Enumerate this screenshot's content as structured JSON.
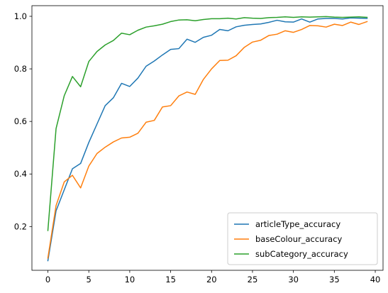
{
  "chart_data": {
    "type": "line",
    "title": "",
    "xlabel": "",
    "ylabel": "",
    "xlim": [
      -1.95,
      40.95
    ],
    "ylim": [
      0.0335,
      1.0405
    ],
    "xticks": [
      0,
      5,
      10,
      15,
      20,
      25,
      30,
      35,
      40
    ],
    "xtick_labels": [
      "0",
      "5",
      "10",
      "15",
      "20",
      "25",
      "30",
      "35",
      "40"
    ],
    "yticks": [
      0.2,
      0.4,
      0.6,
      0.8,
      1.0
    ],
    "ytick_labels": [
      "0.2",
      "0.4",
      "0.6",
      "0.8",
      "1.0"
    ],
    "grid": false,
    "legend_position": "bottom-right",
    "x": [
      0,
      1,
      2,
      3,
      4,
      5,
      6,
      7,
      8,
      9,
      10,
      11,
      12,
      13,
      14,
      15,
      16,
      17,
      18,
      19,
      20,
      21,
      22,
      23,
      24,
      25,
      26,
      27,
      28,
      29,
      30,
      31,
      32,
      33,
      34,
      35,
      36,
      37,
      38,
      39
    ],
    "series": [
      {
        "name": "articleType_accuracy",
        "color": "#1f77b4",
        "values": [
          0.07,
          0.26,
          0.34,
          0.42,
          0.44,
          0.52,
          0.59,
          0.66,
          0.69,
          0.745,
          0.733,
          0.765,
          0.81,
          0.83,
          0.853,
          0.874,
          0.877,
          0.913,
          0.901,
          0.92,
          0.928,
          0.95,
          0.945,
          0.96,
          0.966,
          0.969,
          0.971,
          0.977,
          0.985,
          0.979,
          0.978,
          0.99,
          0.978,
          0.99,
          0.992,
          0.992,
          0.99,
          0.994,
          0.993,
          0.992
        ]
      },
      {
        "name": "baseColour_accuracy",
        "color": "#ff7f0e",
        "values": [
          0.08,
          0.28,
          0.37,
          0.395,
          0.347,
          0.43,
          0.478,
          0.502,
          0.522,
          0.537,
          0.54,
          0.555,
          0.597,
          0.604,
          0.655,
          0.66,
          0.697,
          0.712,
          0.703,
          0.76,
          0.8,
          0.832,
          0.833,
          0.85,
          0.882,
          0.902,
          0.909,
          0.927,
          0.932,
          0.945,
          0.939,
          0.95,
          0.965,
          0.964,
          0.959,
          0.97,
          0.965,
          0.978,
          0.969,
          0.98
        ]
      },
      {
        "name": "subCategory_accuracy",
        "color": "#2ca02c",
        "values": [
          0.185,
          0.573,
          0.698,
          0.771,
          0.732,
          0.828,
          0.866,
          0.891,
          0.908,
          0.936,
          0.93,
          0.947,
          0.959,
          0.964,
          0.97,
          0.98,
          0.986,
          0.987,
          0.983,
          0.988,
          0.991,
          0.991,
          0.993,
          0.99,
          0.995,
          0.993,
          0.992,
          0.995,
          0.996,
          0.998,
          0.996,
          0.998,
          0.997,
          0.998,
          0.999,
          0.997,
          0.996,
          0.997,
          0.998,
          0.996
        ]
      }
    ]
  }
}
